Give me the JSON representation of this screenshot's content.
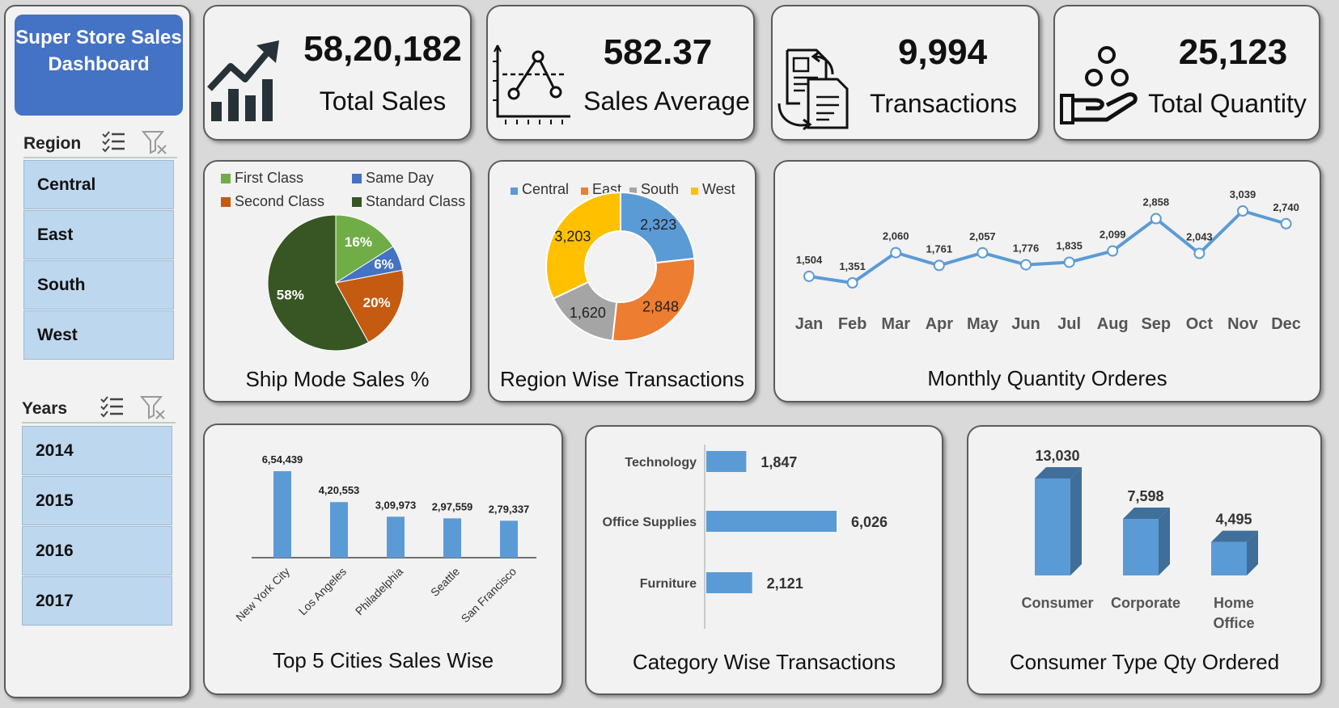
{
  "sidebar": {
    "title": "Super Store Sales Dashboard",
    "region": {
      "label": "Region",
      "items": [
        "Central",
        "East",
        "South",
        "West"
      ]
    },
    "years": {
      "label": "Years",
      "items": [
        "2014",
        "2015",
        "2016",
        "2017"
      ]
    }
  },
  "kpis": [
    {
      "value": "58,20,182",
      "label": "Total Sales",
      "icon": "growth-chart-icon"
    },
    {
      "value": "582.37",
      "label": "Sales Average",
      "icon": "average-graph-icon"
    },
    {
      "value": "9,994",
      "label": "Transactions",
      "icon": "document-exchange-icon"
    },
    {
      "value": "25,123",
      "label": "Total Quantity",
      "icon": "hand-coins-icon"
    }
  ],
  "colors": {
    "blue": "#5b9bd5",
    "orange": "#ed7d31",
    "gray": "#a5a5a5",
    "yellow": "#ffc000",
    "light_green": "#70ad47",
    "dark_green": "#375623",
    "rust": "#c55a11",
    "royal_blue": "#4472c4"
  },
  "chart_data": [
    {
      "id": "ship_mode",
      "type": "pie",
      "title": "Ship Mode Sales %",
      "legend_position": "top",
      "categories": [
        "First Class",
        "Same Day",
        "Second Class",
        "Standard Class"
      ],
      "values": [
        16,
        6,
        20,
        58
      ],
      "labels": [
        "16%",
        "6%",
        "20%",
        "58%"
      ],
      "colors": [
        "#70ad47",
        "#4472c4",
        "#c55a11",
        "#375623"
      ]
    },
    {
      "id": "region",
      "type": "pie",
      "title": "Region Wise Transactions",
      "legend_position": "top",
      "categories": [
        "Central",
        "East",
        "South",
        "West"
      ],
      "values": [
        2323,
        2848,
        1620,
        3203
      ],
      "labels": [
        "2,323",
        "2,848",
        "1,620",
        "3,203"
      ],
      "colors": [
        "#5b9bd5",
        "#ed7d31",
        "#a5a5a5",
        "#ffc000"
      ]
    },
    {
      "id": "monthly",
      "type": "line",
      "title": "Monthly Quantity Orderes",
      "categories": [
        "Jan",
        "Feb",
        "Mar",
        "Apr",
        "May",
        "Jun",
        "Jul",
        "Aug",
        "Sep",
        "Oct",
        "Nov",
        "Dec"
      ],
      "values": [
        1504,
        1351,
        2060,
        1761,
        2057,
        1776,
        1835,
        2099,
        2858,
        2043,
        3039,
        2740
      ],
      "labels": [
        "1,504",
        "1,351",
        "2,060",
        "1,761",
        "2,057",
        "1,776",
        "1,835",
        "2,099",
        "2,858",
        "2,043",
        "3,039",
        "2,740"
      ],
      "grid": false,
      "color": "#5b9bd5"
    },
    {
      "id": "cities",
      "type": "bar",
      "title": "Top 5 Cities Sales Wise",
      "categories": [
        "New York City",
        "Los Angeles",
        "Philadelphia",
        "Seattle",
        "San Francisco"
      ],
      "values": [
        654439,
        420553,
        309973,
        297559,
        279337
      ],
      "labels": [
        "6,54,439",
        "4,20,553",
        "3,09,973",
        "2,97,559",
        "2,79,337"
      ],
      "color": "#5b9bd5"
    },
    {
      "id": "category",
      "type": "bar",
      "orientation": "horizontal",
      "title": "Category Wise Transactions",
      "categories": [
        "Technology",
        "Office Supplies",
        "Furniture"
      ],
      "values": [
        1847,
        6026,
        2121
      ],
      "labels": [
        "1,847",
        "6,026",
        "2,121"
      ],
      "color": "#5b9bd5"
    },
    {
      "id": "consumer",
      "type": "bar",
      "title": "Consumer Type Qty Ordered",
      "categories": [
        "Consumer",
        "Corporate",
        "Home Office"
      ],
      "values": [
        13030,
        7598,
        4495
      ],
      "labels": [
        "13,030",
        "7,598",
        "4,495"
      ],
      "color": "#5b9bd5"
    }
  ]
}
